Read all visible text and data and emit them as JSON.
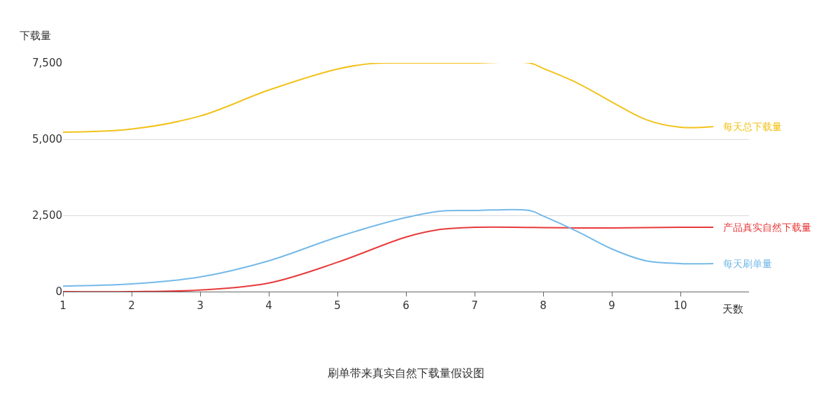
{
  "chart_data": {
    "type": "line",
    "title": "刷单带来真实自然下载量假设图",
    "xlabel": "天数",
    "ylabel": "下载量",
    "xlim": [
      1,
      11
    ],
    "xticks": [
      1,
      2,
      3,
      4,
      5,
      6,
      7,
      8,
      9,
      10
    ],
    "ylim": [
      0,
      7500
    ],
    "yticks": [
      {
        "value": 0,
        "label": "0"
      },
      {
        "value": 2500,
        "label": "2,500"
      },
      {
        "value": 5000,
        "label": "5,000"
      },
      {
        "value": 7500,
        "label": "7,500"
      }
    ],
    "grid": "y",
    "legend": false,
    "marker": "none",
    "line_style": "solid",
    "series": [
      {
        "name": "每天总下载量",
        "color": "#f2c21b",
        "x": [
          1,
          2,
          3,
          4,
          5,
          5.5,
          6,
          7,
          7.8,
          8,
          8.5,
          9,
          9.5,
          10,
          10.48
        ],
        "values": [
          5230,
          5330,
          5760,
          6610,
          7300,
          7480,
          7500,
          7500,
          7500,
          7320,
          6840,
          6220,
          5640,
          5390,
          5410
        ]
      },
      {
        "name": "产品真实自然下载量",
        "color": "#e8393a",
        "x": [
          1,
          2,
          3,
          4,
          5,
          6,
          6.5,
          7,
          8,
          8.5,
          9,
          10,
          10.48
        ],
        "values": [
          0,
          0,
          50,
          280,
          960,
          1790,
          2040,
          2110,
          2100,
          2090,
          2090,
          2110,
          2110
        ]
      },
      {
        "name": "每天刷单量",
        "color": "#74b9e8",
        "x": [
          1,
          2,
          3,
          4,
          5,
          6,
          6.5,
          7,
          7.8,
          8,
          8.5,
          9,
          9.5,
          10,
          10.48
        ],
        "values": [
          180,
          250,
          480,
          1010,
          1790,
          2430,
          2640,
          2660,
          2660,
          2480,
          1970,
          1400,
          1010,
          920,
          920
        ]
      }
    ]
  }
}
